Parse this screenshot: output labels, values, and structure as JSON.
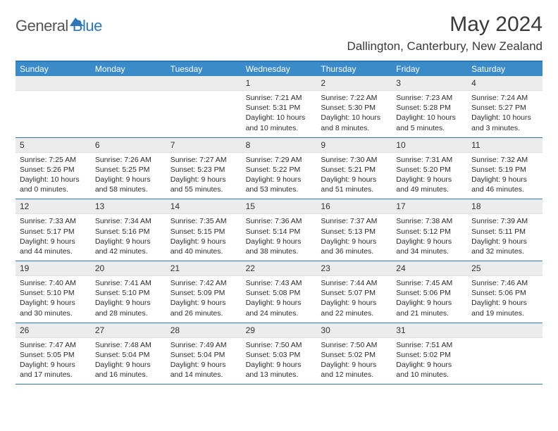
{
  "logo": {
    "text1": "General",
    "text2": "Blue"
  },
  "title": "May 2024",
  "location": "Dallington, Canterbury, New Zealand",
  "colors": {
    "header_bg": "#3b8bc9",
    "border": "#2e77b8",
    "daynum_bg": "#ececec"
  },
  "weekdays": [
    "Sunday",
    "Monday",
    "Tuesday",
    "Wednesday",
    "Thursday",
    "Friday",
    "Saturday"
  ],
  "weeks": [
    [
      null,
      null,
      null,
      {
        "n": "1",
        "sr": "7:21 AM",
        "ss": "5:31 PM",
        "dl": "10 hours and 10 minutes."
      },
      {
        "n": "2",
        "sr": "7:22 AM",
        "ss": "5:30 PM",
        "dl": "10 hours and 8 minutes."
      },
      {
        "n": "3",
        "sr": "7:23 AM",
        "ss": "5:28 PM",
        "dl": "10 hours and 5 minutes."
      },
      {
        "n": "4",
        "sr": "7:24 AM",
        "ss": "5:27 PM",
        "dl": "10 hours and 3 minutes."
      }
    ],
    [
      {
        "n": "5",
        "sr": "7:25 AM",
        "ss": "5:26 PM",
        "dl": "10 hours and 0 minutes."
      },
      {
        "n": "6",
        "sr": "7:26 AM",
        "ss": "5:25 PM",
        "dl": "9 hours and 58 minutes."
      },
      {
        "n": "7",
        "sr": "7:27 AM",
        "ss": "5:23 PM",
        "dl": "9 hours and 55 minutes."
      },
      {
        "n": "8",
        "sr": "7:29 AM",
        "ss": "5:22 PM",
        "dl": "9 hours and 53 minutes."
      },
      {
        "n": "9",
        "sr": "7:30 AM",
        "ss": "5:21 PM",
        "dl": "9 hours and 51 minutes."
      },
      {
        "n": "10",
        "sr": "7:31 AM",
        "ss": "5:20 PM",
        "dl": "9 hours and 49 minutes."
      },
      {
        "n": "11",
        "sr": "7:32 AM",
        "ss": "5:19 PM",
        "dl": "9 hours and 46 minutes."
      }
    ],
    [
      {
        "n": "12",
        "sr": "7:33 AM",
        "ss": "5:17 PM",
        "dl": "9 hours and 44 minutes."
      },
      {
        "n": "13",
        "sr": "7:34 AM",
        "ss": "5:16 PM",
        "dl": "9 hours and 42 minutes."
      },
      {
        "n": "14",
        "sr": "7:35 AM",
        "ss": "5:15 PM",
        "dl": "9 hours and 40 minutes."
      },
      {
        "n": "15",
        "sr": "7:36 AM",
        "ss": "5:14 PM",
        "dl": "9 hours and 38 minutes."
      },
      {
        "n": "16",
        "sr": "7:37 AM",
        "ss": "5:13 PM",
        "dl": "9 hours and 36 minutes."
      },
      {
        "n": "17",
        "sr": "7:38 AM",
        "ss": "5:12 PM",
        "dl": "9 hours and 34 minutes."
      },
      {
        "n": "18",
        "sr": "7:39 AM",
        "ss": "5:11 PM",
        "dl": "9 hours and 32 minutes."
      }
    ],
    [
      {
        "n": "19",
        "sr": "7:40 AM",
        "ss": "5:10 PM",
        "dl": "9 hours and 30 minutes."
      },
      {
        "n": "20",
        "sr": "7:41 AM",
        "ss": "5:10 PM",
        "dl": "9 hours and 28 minutes."
      },
      {
        "n": "21",
        "sr": "7:42 AM",
        "ss": "5:09 PM",
        "dl": "9 hours and 26 minutes."
      },
      {
        "n": "22",
        "sr": "7:43 AM",
        "ss": "5:08 PM",
        "dl": "9 hours and 24 minutes."
      },
      {
        "n": "23",
        "sr": "7:44 AM",
        "ss": "5:07 PM",
        "dl": "9 hours and 22 minutes."
      },
      {
        "n": "24",
        "sr": "7:45 AM",
        "ss": "5:06 PM",
        "dl": "9 hours and 21 minutes."
      },
      {
        "n": "25",
        "sr": "7:46 AM",
        "ss": "5:06 PM",
        "dl": "9 hours and 19 minutes."
      }
    ],
    [
      {
        "n": "26",
        "sr": "7:47 AM",
        "ss": "5:05 PM",
        "dl": "9 hours and 17 minutes."
      },
      {
        "n": "27",
        "sr": "7:48 AM",
        "ss": "5:04 PM",
        "dl": "9 hours and 16 minutes."
      },
      {
        "n": "28",
        "sr": "7:49 AM",
        "ss": "5:04 PM",
        "dl": "9 hours and 14 minutes."
      },
      {
        "n": "29",
        "sr": "7:50 AM",
        "ss": "5:03 PM",
        "dl": "9 hours and 13 minutes."
      },
      {
        "n": "30",
        "sr": "7:50 AM",
        "ss": "5:02 PM",
        "dl": "9 hours and 12 minutes."
      },
      {
        "n": "31",
        "sr": "7:51 AM",
        "ss": "5:02 PM",
        "dl": "9 hours and 10 minutes."
      },
      null
    ]
  ],
  "labels": {
    "sunrise": "Sunrise:",
    "sunset": "Sunset:",
    "daylight": "Daylight:"
  }
}
